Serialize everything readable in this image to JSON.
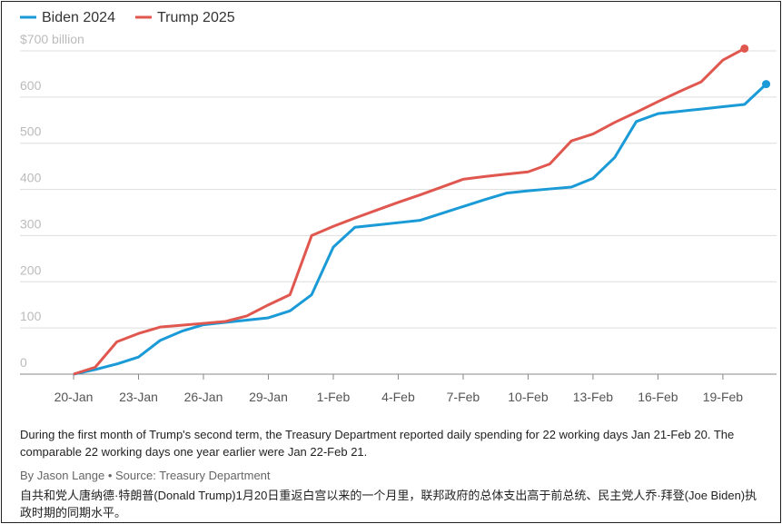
{
  "chart_data": {
    "type": "line",
    "caption": "During the first month of Trump's second term, the Treasury Department reported daily spending for 22 working days Jan 21-Feb 20. The comparable 22 working days one year earlier were Jan 22-Feb 21.",
    "byline": "By Jason Lange • Source: Treasury Department",
    "note": "自共和党人唐纳德·特朗普(Donald Trump)1月20日重返白宫以来的一个月里，联邦政府的总体支出高于前总统、民主党人乔·拜登(Joe Biden)执政时期的同期水平。",
    "categories": [
      "20-Jan",
      null,
      null,
      "23-Jan",
      null,
      null,
      "26-Jan",
      null,
      null,
      "29-Jan",
      null,
      null,
      "1-Feb",
      null,
      null,
      "4-Feb",
      null,
      null,
      "7-Feb",
      null,
      null,
      "10-Feb",
      null,
      null,
      "13-Feb",
      null,
      null,
      "16-Feb",
      null,
      null,
      "19-Feb",
      null,
      null
    ],
    "series": [
      {
        "name": "Biden 2024",
        "color": "#1a9ad6",
        "values": [
          0,
          10,
          22,
          37,
          73,
          93,
          107,
          112,
          117,
          122,
          137,
          172,
          275,
          318,
          323,
          328,
          333,
          348,
          363,
          378,
          392,
          397,
          401,
          405,
          424,
          469,
          547,
          564,
          569,
          574,
          579,
          584,
          628
        ]
      },
      {
        "name": "Trump 2025",
        "color": "#e0574f",
        "values": [
          0,
          15,
          70,
          88,
          102,
          106,
          110,
          114,
          126,
          150,
          172,
          300,
          320,
          338,
          355,
          372,
          388,
          405,
          422,
          428,
          433,
          438,
          455,
          505,
          520,
          545,
          567,
          590,
          612,
          633,
          680,
          705,
          null
        ]
      }
    ],
    "ylim": [
      0,
      700
    ],
    "yticks": [
      0,
      100,
      200,
      300,
      400,
      500,
      600,
      {
        "value": 700,
        "label": "$700 billion"
      }
    ],
    "grid": true
  }
}
